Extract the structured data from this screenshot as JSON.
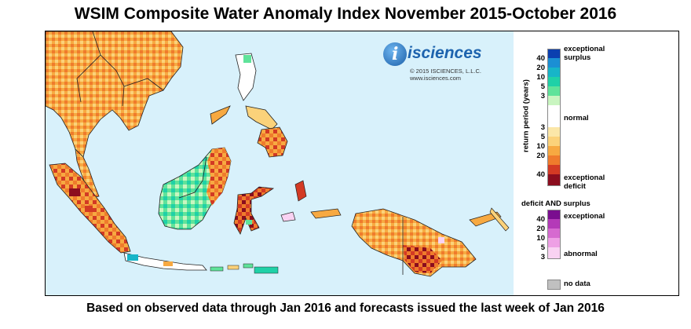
{
  "title": "WSIM Composite Water Anomaly Index November 2015-October 2016",
  "subtitle": "Based on observed data through Jan 2016 and forecasts issued the last week of Jan 2016",
  "logo": {
    "name": "isciences",
    "copyright": "© 2015 ISCIENCES, L.L.C.",
    "url": "www.isciences.com"
  },
  "legend": {
    "axis_label": "return period (years)",
    "surplus_label_1": "exceptional",
    "surplus_label_2": "surplus",
    "normal_label": "normal",
    "deficit_label_1": "exceptional",
    "deficit_label_2": "deficit",
    "both_title": "deficit AND surplus",
    "both_exceptional": "exceptional",
    "both_abnormal": "abnormal",
    "no_data": "no data",
    "surplus_ticks": [
      "40",
      "20",
      "10",
      "5",
      "3"
    ],
    "deficit_ticks": [
      "3",
      "5",
      "10",
      "20",
      "40"
    ],
    "both_ticks": [
      "40",
      "20",
      "10",
      "5",
      "3"
    ],
    "colors": {
      "surplus": [
        "#0b3fb0",
        "#1b8fd4",
        "#17b5c8",
        "#1fd1a7",
        "#5fe39a",
        "#c9f5c0"
      ],
      "deficit": [
        "#fbe7a8",
        "#fbd27a",
        "#f7a941",
        "#ef7b2c",
        "#d33a24",
        "#8b0d1e"
      ],
      "both": [
        "#7a0d8f",
        "#b43ab8",
        "#d66ad0",
        "#eea0e5",
        "#f9d2f2"
      ],
      "no_data": "#c0c0c0",
      "ocean": "#d8f1fb"
    }
  }
}
